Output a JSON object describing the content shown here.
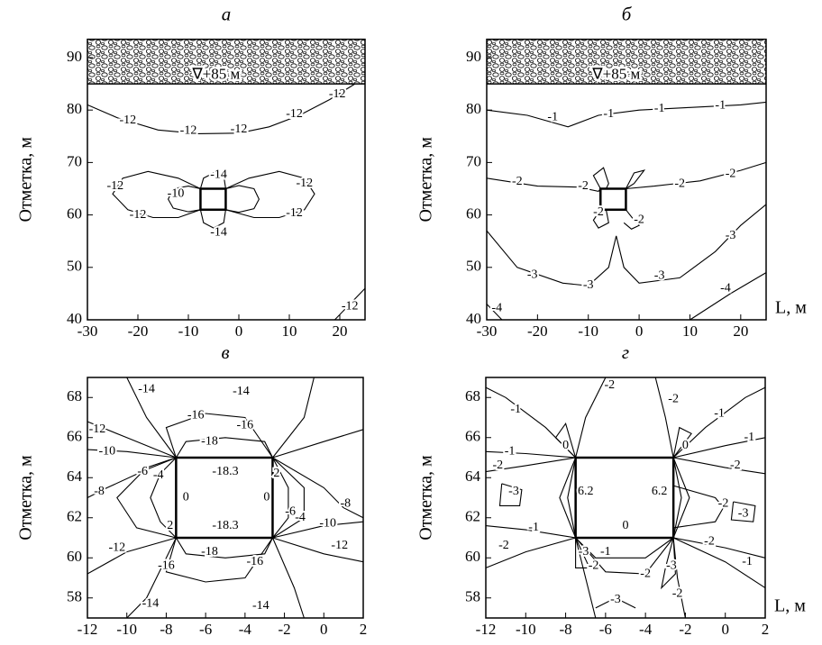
{
  "chart_data": [
    {
      "type": "contour",
      "title": "а",
      "y_label": "Отметка, м",
      "annotation": "∇+85 м",
      "xlim": [
        -30,
        25
      ],
      "ylim": [
        40,
        93.5
      ],
      "xticks": [
        -30,
        -20,
        -10,
        0,
        10,
        20
      ],
      "yticks": [
        40,
        50,
        60,
        70,
        80,
        90
      ],
      "line_color": "#000",
      "contour_labels": [
        -12,
        -12,
        -12,
        -12,
        -12,
        -14,
        -12,
        -10,
        -12,
        -14,
        -12,
        -12,
        -12
      ]
    },
    {
      "type": "contour",
      "title": "б",
      "y_label": "Отметка, м",
      "x_label": "L, м",
      "annotation": "∇+85 м",
      "xlim": [
        -30,
        25
      ],
      "ylim": [
        40,
        93.5
      ],
      "xticks": [
        -30,
        -20,
        -10,
        0,
        10,
        20
      ],
      "yticks": [
        40,
        50,
        60,
        70,
        80,
        90
      ],
      "line_color": "#000",
      "contour_labels": [
        -1,
        -1,
        -1,
        -1,
        -2,
        -2,
        -2,
        -2,
        -2,
        -2,
        -3,
        -3,
        -3,
        -3,
        -4,
        -4
      ]
    },
    {
      "type": "contour",
      "title": "в",
      "y_label": "Отметка, м",
      "xlim": [
        -12,
        2
      ],
      "ylim": [
        57,
        69
      ],
      "xticks": [
        -12,
        -10,
        -8,
        -6,
        -4,
        -2,
        0,
        2
      ],
      "yticks": [
        58,
        60,
        62,
        64,
        66,
        68
      ],
      "line_color": "#000",
      "contour_labels": [
        -14,
        -14,
        -16,
        -16,
        -18,
        -12,
        -10,
        -8,
        -6,
        -4,
        -18.3,
        0,
        0,
        -18.3,
        -18,
        -16,
        -16,
        -14,
        -14,
        -12,
        -12,
        -10,
        -8,
        -6,
        -4,
        2,
        2
      ]
    },
    {
      "type": "contour",
      "title": "г",
      "y_label": "Отметка, м",
      "x_label": "L, м",
      "xlim": [
        -12,
        2
      ],
      "ylim": [
        57,
        69
      ],
      "xticks": [
        -12,
        -10,
        -8,
        -6,
        -4,
        -2,
        0,
        2
      ],
      "yticks": [
        58,
        60,
        62,
        64,
        66,
        68
      ],
      "line_color": "#000",
      "contour_labels": [
        -1,
        -2,
        -2,
        -1,
        0,
        0,
        -1,
        -1,
        -2,
        -2,
        -3,
        -3,
        -2,
        6.2,
        6.2,
        0,
        -1,
        -2,
        -3,
        -3,
        -1,
        -2,
        -2,
        -1,
        -2,
        -3,
        -2
      ]
    }
  ]
}
